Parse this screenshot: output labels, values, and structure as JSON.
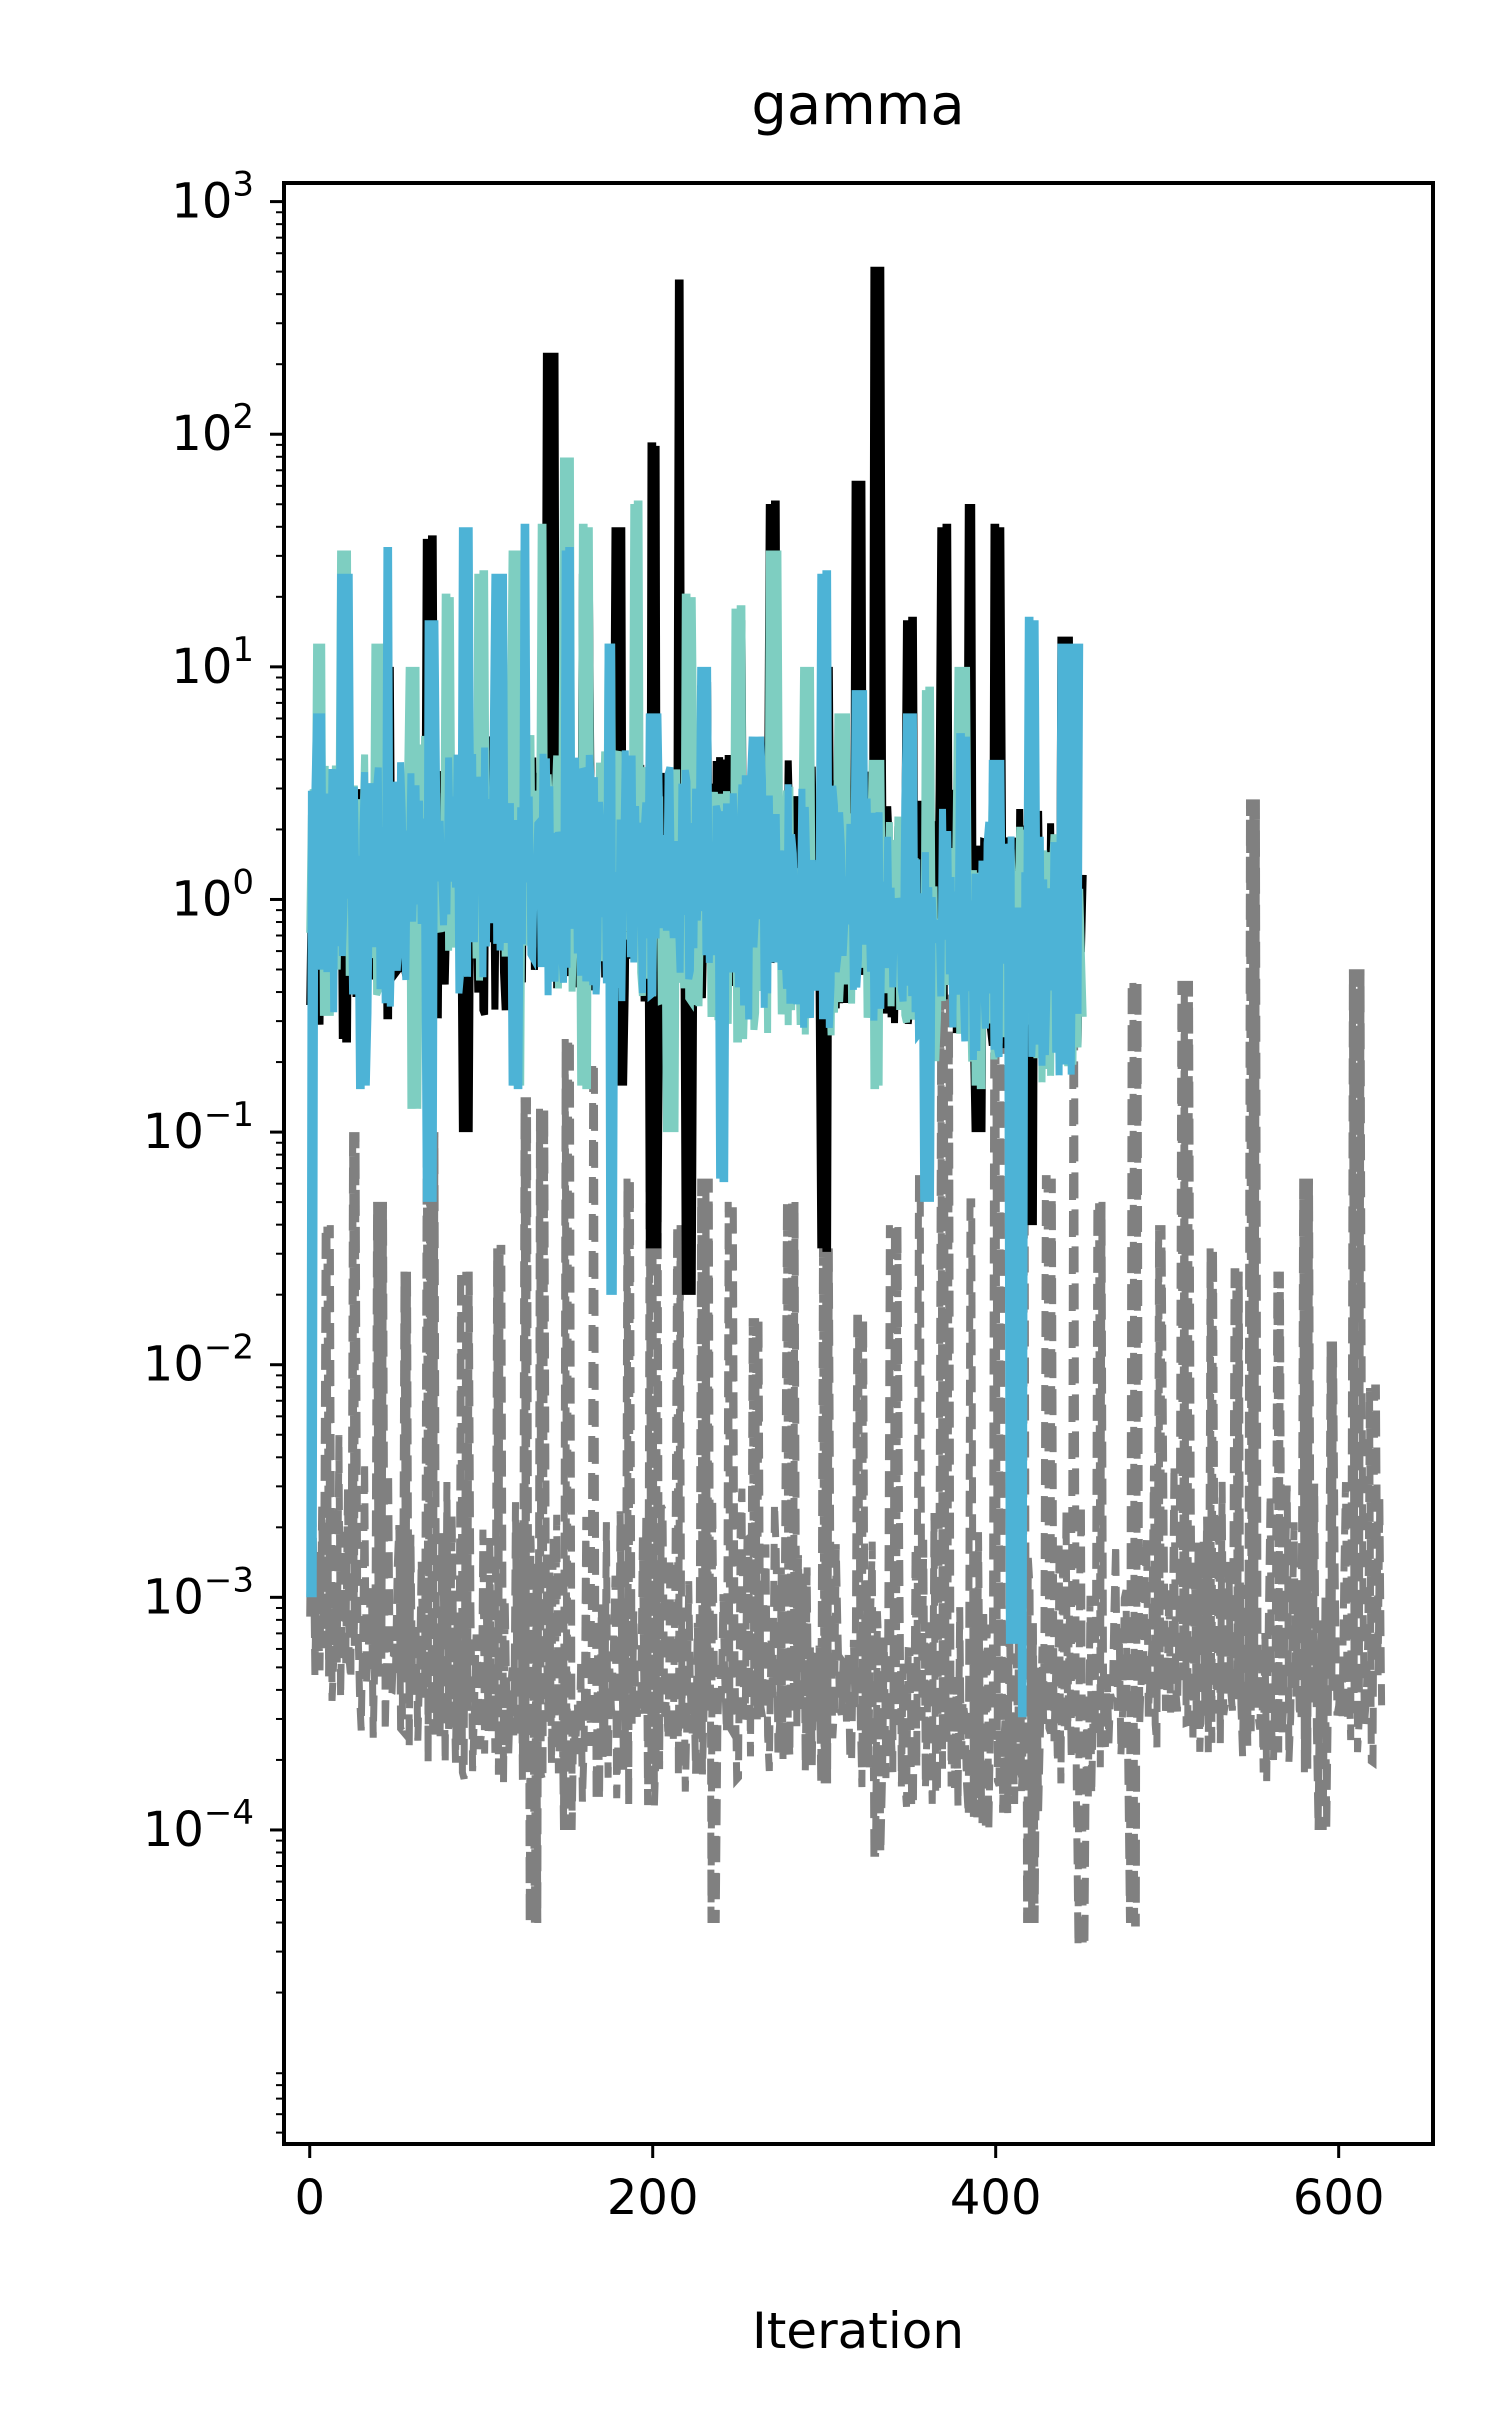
{
  "chart_data": {
    "type": "line",
    "title": "gamma",
    "xlabel": "Iteration",
    "ylabel": "",
    "xlim": [
      -15,
      655
    ],
    "ylim_log10": [
      -5.35,
      3.08
    ],
    "y_scale": "log",
    "grid": false,
    "legend": "none",
    "x_ticks": [
      {
        "value": 0,
        "label": "0"
      },
      {
        "value": 200,
        "label": "200"
      },
      {
        "value": 400,
        "label": "400"
      },
      {
        "value": 600,
        "label": "600"
      }
    ],
    "y_ticks": [
      {
        "exp": 3,
        "base": "10",
        "sup": "3"
      },
      {
        "exp": 2,
        "base": "10",
        "sup": "2"
      },
      {
        "exp": 1,
        "base": "10",
        "sup": "1"
      },
      {
        "exp": 0,
        "base": "10",
        "sup": "0"
      },
      {
        "exp": -1,
        "base": "10",
        "sup": "−1"
      },
      {
        "exp": -2,
        "base": "10",
        "sup": "−2"
      },
      {
        "exp": -3,
        "base": "10",
        "sup": "−3"
      },
      {
        "exp": -4,
        "base": "10",
        "sup": "−4"
      }
    ],
    "series": [
      {
        "color": "#808080",
        "dash": "dashed",
        "peaks": [
          [
            0,
            -3.0
          ],
          [
            10,
            -1.4
          ],
          [
            25,
            -1.0
          ],
          [
            40,
            -1.3
          ],
          [
            55,
            -1.6
          ],
          [
            70,
            -1.0
          ],
          [
            90,
            -1.6
          ],
          [
            110,
            -1.5
          ],
          [
            125,
            -0.85
          ],
          [
            135,
            -0.9
          ],
          [
            150,
            -0.6
          ],
          [
            165,
            -0.7
          ],
          [
            185,
            -1.2
          ],
          [
            200,
            -1.0
          ],
          [
            215,
            -1.4
          ],
          [
            230,
            -1.2
          ],
          [
            245,
            -1.3
          ],
          [
            260,
            -1.8
          ],
          [
            280,
            -1.3
          ],
          [
            300,
            -1.5
          ],
          [
            320,
            -1.8
          ],
          [
            340,
            -1.4
          ],
          [
            355,
            -1.2
          ],
          [
            370,
            -0.4
          ],
          [
            385,
            -1.3
          ],
          [
            400,
            -0.05
          ],
          [
            415,
            -0.6
          ],
          [
            430,
            -1.2
          ],
          [
            445,
            -0.6
          ],
          [
            460,
            -1.3
          ],
          [
            480,
            -0.35
          ],
          [
            495,
            -1.4
          ],
          [
            510,
            -0.35
          ],
          [
            525,
            -1.5
          ],
          [
            540,
            -1.6
          ],
          [
            550,
            0.43
          ],
          [
            565,
            -1.6
          ],
          [
            580,
            -1.2
          ],
          [
            595,
            -1.9
          ],
          [
            610,
            -0.3
          ],
          [
            620,
            -2.1
          ]
        ],
        "base": [
          [
            0,
            -3.0
          ],
          [
            50,
            -3.3
          ],
          [
            100,
            -3.4
          ],
          [
            150,
            -3.5
          ],
          [
            200,
            -3.5
          ],
          [
            250,
            -3.4
          ],
          [
            300,
            -3.4
          ],
          [
            350,
            -3.5
          ],
          [
            400,
            -3.6
          ],
          [
            450,
            -3.5
          ],
          [
            500,
            -3.3
          ],
          [
            550,
            -3.4
          ],
          [
            600,
            -3.4
          ],
          [
            625,
            -3.3
          ]
        ],
        "dips": [
          [
            130,
            -4.4
          ],
          [
            150,
            -4.0
          ],
          [
            235,
            -4.4
          ],
          [
            300,
            -3.8
          ],
          [
            330,
            -4.1
          ],
          [
            350,
            -3.9
          ],
          [
            395,
            -4.0
          ],
          [
            420,
            -4.4
          ],
          [
            450,
            -4.5
          ],
          [
            480,
            -4.4
          ],
          [
            590,
            -4.0
          ]
        ]
      },
      {
        "color": "#000000",
        "dash": "solid",
        "peaks": [
          [
            0,
            0.0
          ],
          [
            20,
            0.6
          ],
          [
            45,
            1.0
          ],
          [
            70,
            1.55
          ],
          [
            100,
            0.7
          ],
          [
            140,
            2.35
          ],
          [
            160,
            1.4
          ],
          [
            180,
            1.6
          ],
          [
            200,
            1.95
          ],
          [
            215,
            2.65
          ],
          [
            230,
            0.92
          ],
          [
            250,
            1.2
          ],
          [
            270,
            1.7
          ],
          [
            300,
            1.0
          ],
          [
            320,
            1.8
          ],
          [
            330,
            2.72
          ],
          [
            350,
            1.2
          ],
          [
            370,
            1.6
          ],
          [
            385,
            1.7
          ],
          [
            400,
            1.6
          ],
          [
            420,
            0.8
          ],
          [
            440,
            1.13
          ]
        ],
        "base": [
          [
            0,
            0.0
          ],
          [
            100,
            0.05
          ],
          [
            200,
            0.1
          ],
          [
            300,
            0.05
          ],
          [
            400,
            -0.1
          ],
          [
            450,
            -0.2
          ]
        ],
        "dips": [
          [
            20,
            -0.6
          ],
          [
            45,
            -0.5
          ],
          [
            90,
            -1.0
          ],
          [
            180,
            -0.8
          ],
          [
            200,
            -1.5
          ],
          [
            220,
            -1.7
          ],
          [
            300,
            -1.5
          ],
          [
            390,
            -1.0
          ],
          [
            420,
            -1.4
          ]
        ]
      },
      {
        "color": "#7ecec1",
        "dash": "solid",
        "peaks": [
          [
            5,
            1.1
          ],
          [
            20,
            1.5
          ],
          [
            40,
            1.1
          ],
          [
            60,
            1.0
          ],
          [
            80,
            1.3
          ],
          [
            100,
            1.4
          ],
          [
            120,
            1.5
          ],
          [
            135,
            1.6
          ],
          [
            150,
            1.9
          ],
          [
            160,
            1.6
          ],
          [
            175,
            1.1
          ],
          [
            190,
            1.7
          ],
          [
            220,
            1.3
          ],
          [
            250,
            1.25
          ],
          [
            270,
            1.5
          ],
          [
            290,
            1.0
          ],
          [
            310,
            0.8
          ],
          [
            330,
            0.6
          ],
          [
            360,
            0.9
          ],
          [
            380,
            1.0
          ],
          [
            400,
            0.5
          ],
          [
            420,
            0.3
          ],
          [
            440,
            0.5
          ]
        ],
        "base": [
          [
            0,
            0.1
          ],
          [
            100,
            0.2
          ],
          [
            200,
            0.1
          ],
          [
            300,
            -0.1
          ],
          [
            400,
            -0.2
          ],
          [
            450,
            -0.3
          ]
        ],
        "dips": [
          [
            10,
            -0.5
          ],
          [
            60,
            -0.9
          ],
          [
            120,
            -0.8
          ],
          [
            160,
            -0.8
          ],
          [
            210,
            -1.0
          ],
          [
            250,
            -0.6
          ],
          [
            330,
            -0.8
          ],
          [
            390,
            -0.8
          ]
        ]
      },
      {
        "color": "#4db3d6",
        "dash": "solid",
        "peaks": [
          [
            5,
            0.8
          ],
          [
            20,
            1.4
          ],
          [
            45,
            1.5
          ],
          [
            70,
            1.2
          ],
          [
            90,
            1.6
          ],
          [
            110,
            1.4
          ],
          [
            125,
            1.6
          ],
          [
            150,
            1.5
          ],
          [
            175,
            1.1
          ],
          [
            200,
            0.8
          ],
          [
            230,
            1.0
          ],
          [
            260,
            0.7
          ],
          [
            300,
            1.4
          ],
          [
            320,
            0.9
          ],
          [
            350,
            0.8
          ],
          [
            380,
            0.7
          ],
          [
            400,
            0.6
          ],
          [
            420,
            1.2
          ],
          [
            440,
            1.1
          ],
          [
            448,
            1.1
          ]
        ],
        "base": [
          [
            0,
            0.0
          ],
          [
            100,
            0.15
          ],
          [
            200,
            0.1
          ],
          [
            300,
            -0.05
          ],
          [
            400,
            -0.2
          ],
          [
            448,
            -0.25
          ]
        ],
        "dips": [
          [
            0,
            -3.0
          ],
          [
            30,
            -0.8
          ],
          [
            70,
            -1.3
          ],
          [
            120,
            -0.8
          ],
          [
            175,
            -1.7
          ],
          [
            240,
            -1.2
          ],
          [
            300,
            -0.5
          ],
          [
            360,
            -1.3
          ],
          [
            410,
            -3.2
          ],
          [
            415,
            -3.5
          ]
        ]
      }
    ]
  }
}
